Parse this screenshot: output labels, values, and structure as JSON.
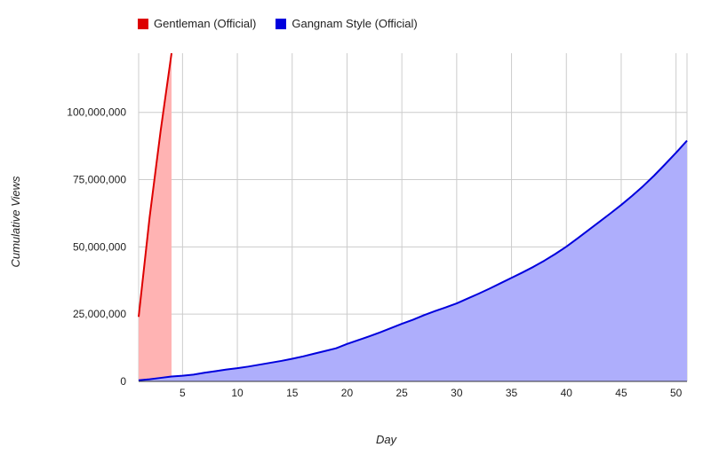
{
  "chart_data": {
    "type": "area",
    "xlabel": "Day",
    "ylabel": "Cumulative Views",
    "xlim": [
      1,
      51
    ],
    "ylim": [
      0,
      122000000
    ],
    "x_ticks": [
      5,
      10,
      15,
      20,
      25,
      30,
      35,
      40,
      45,
      50
    ],
    "y_ticks": [
      0,
      25000000,
      50000000,
      75000000,
      100000000
    ],
    "y_tick_labels": [
      "0",
      "25,000,000",
      "50,000,000",
      "75,000,000",
      "100,000,000"
    ],
    "grid": true,
    "legend_position": "top",
    "series": [
      {
        "name": "Gentleman (Official)",
        "color": "#dd0000",
        "fill": "#ffb3b3",
        "x": [
          1,
          2,
          3,
          4
        ],
        "y": [
          24000000,
          61000000,
          93000000,
          122000000
        ]
      },
      {
        "name": "Gangnam Style (Official)",
        "color": "#0000dd",
        "fill": "#aeaefc",
        "x": [
          1,
          2,
          3,
          4,
          5,
          6,
          7,
          8,
          9,
          10,
          11,
          12,
          13,
          14,
          15,
          16,
          17,
          18,
          19,
          20,
          21,
          22,
          23,
          24,
          25,
          26,
          27,
          28,
          29,
          30,
          31,
          32,
          33,
          34,
          35,
          36,
          37,
          38,
          39,
          40,
          41,
          42,
          43,
          44,
          45,
          46,
          47,
          48,
          49,
          50,
          51
        ],
        "y": [
          400000,
          800000,
          1300000,
          1800000,
          2100000,
          2500000,
          3200000,
          3800000,
          4400000,
          4900000,
          5500000,
          6200000,
          6900000,
          7600000,
          8400000,
          9300000,
          10300000,
          11300000,
          12300000,
          13900000,
          15300000,
          16700000,
          18200000,
          19800000,
          21400000,
          22900000,
          24600000,
          26100000,
          27500000,
          29000000,
          30800000,
          32600000,
          34500000,
          36500000,
          38500000,
          40500000,
          42600000,
          44900000,
          47400000,
          50100000,
          53100000,
          56200000,
          59300000,
          62400000,
          65600000,
          69000000,
          72600000,
          76500000,
          80700000,
          85000000,
          89500000
        ]
      }
    ]
  }
}
